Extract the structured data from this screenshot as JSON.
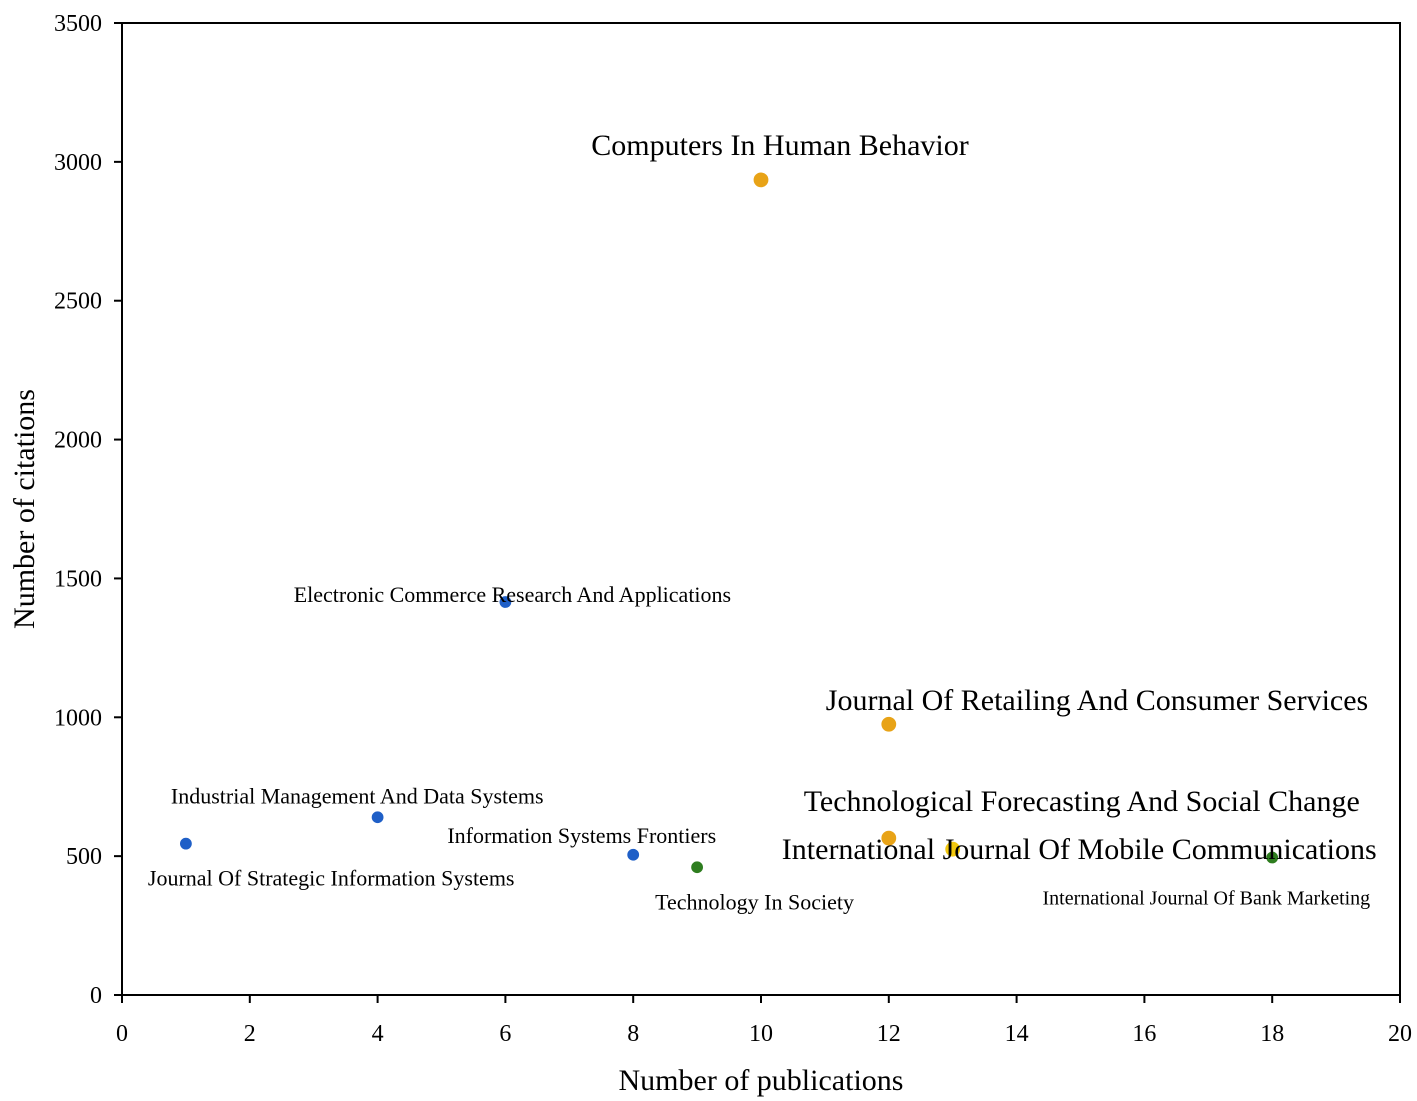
{
  "chart_data": {
    "type": "scatter",
    "title": "",
    "xlabel": "Number of publications",
    "ylabel": "Number of citations",
    "xlim": [
      0,
      20
    ],
    "ylim": [
      0,
      3500
    ],
    "xticks": [
      0,
      2,
      4,
      6,
      8,
      10,
      12,
      14,
      16,
      18,
      20
    ],
    "yticks": [
      0,
      500,
      1000,
      1500,
      2000,
      2500,
      3000,
      3500
    ],
    "grid": false,
    "legend": "none",
    "colors": {
      "blue": "#1f5fc7",
      "green": "#2e7d1f",
      "orange": "#e8a317",
      "yellow": "#f2c80f"
    },
    "points": [
      {
        "label": "Journal Of Strategic Information Systems",
        "x": 1,
        "y": 545,
        "color": "blue",
        "label_size": "small"
      },
      {
        "label": "Industrial Management And Data Systems",
        "x": 4,
        "y": 640,
        "color": "blue",
        "label_size": "small"
      },
      {
        "label": "Electronic Commerce Research And Applications",
        "x": 6,
        "y": 1415,
        "color": "blue",
        "label_size": "small"
      },
      {
        "label": "Information Systems Frontiers",
        "x": 8,
        "y": 505,
        "color": "blue",
        "label_size": "small"
      },
      {
        "label": "Technology In Society",
        "x": 9,
        "y": 460,
        "color": "green",
        "label_size": "small"
      },
      {
        "label": "Computers In Human Behavior",
        "x": 10,
        "y": 2935,
        "color": "orange",
        "label_size": "large"
      },
      {
        "label": "Journal Of Retailing And Consumer Services",
        "x": 12,
        "y": 975,
        "color": "orange",
        "label_size": "large"
      },
      {
        "label": "Technological Forecasting And Social Change",
        "x": 12,
        "y": 565,
        "color": "orange",
        "label_size": "large"
      },
      {
        "label": "International Journal Of Mobile Communications",
        "x": 13,
        "y": 525,
        "color": "yellow",
        "label_size": "large"
      },
      {
        "label": "International Journal Of Bank Marketing",
        "x": 18,
        "y": 495,
        "color": "green",
        "label_size": "small"
      }
    ]
  }
}
